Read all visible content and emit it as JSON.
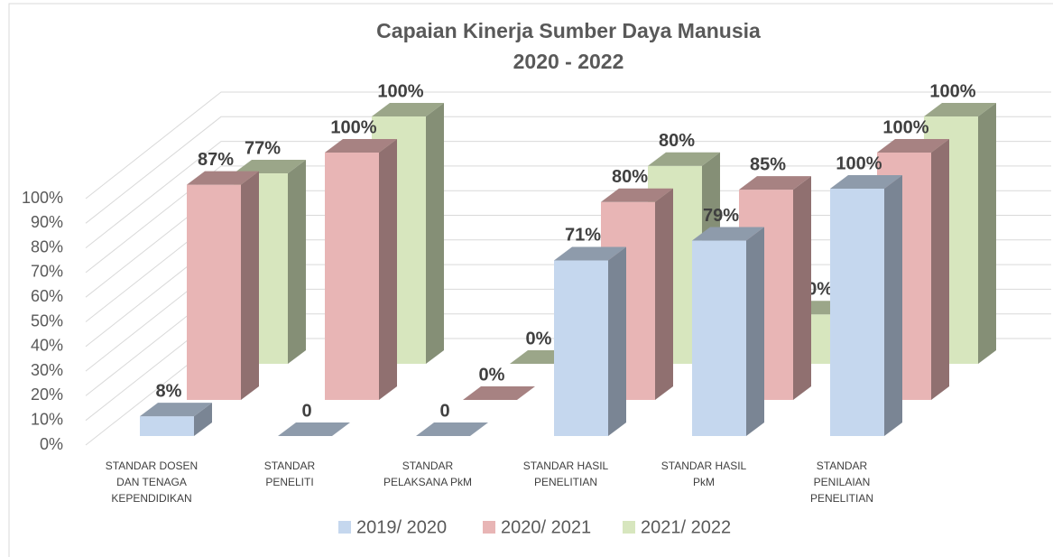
{
  "chart_data": {
    "type": "bar3d",
    "title": "Capaian Kinerja Sumber Daya Manusia",
    "subtitle": "2020 - 2022",
    "categories": [
      "STANDAR DOSEN DAN TENAGA KEPENDIDIKAN",
      "STANDAR PENELITI",
      "STANDAR PELAKSANA PkM",
      "STANDAR HASIL PENELITIAN",
      "STANDAR HASIL PkM",
      "STANDAR PENILAIAN PENELITIAN"
    ],
    "series": [
      {
        "name": "2019/ 2020",
        "color": "#c5d7ee",
        "values": [
          8,
          0,
          0,
          71,
          79,
          100
        ],
        "value_labels": [
          "8%",
          "0",
          "0",
          "71%",
          "79%",
          "100%"
        ]
      },
      {
        "name": "2020/ 2021",
        "color": "#e8b5b5",
        "values": [
          87,
          100,
          0,
          80,
          85,
          100
        ],
        "value_labels": [
          "87%",
          "100%",
          "0%",
          "80%",
          "85%",
          "100%"
        ]
      },
      {
        "name": "2021/ 2022",
        "color": "#d7e6be",
        "values": [
          77,
          100,
          0,
          80,
          20,
          100
        ],
        "value_labels": [
          "77%",
          "100%",
          "0%",
          "80%",
          "20%",
          "100%"
        ]
      }
    ],
    "ylim": [
      0,
      100
    ],
    "yticks": [
      {
        "value": 0,
        "label": "0%"
      },
      {
        "value": 10,
        "label": "10%"
      },
      {
        "value": 20,
        "label": "20%"
      },
      {
        "value": 30,
        "label": "30%"
      },
      {
        "value": 40,
        "label": "40%"
      },
      {
        "value": 50,
        "label": "50%"
      },
      {
        "value": 60,
        "label": "60%"
      },
      {
        "value": 70,
        "label": "70%"
      },
      {
        "value": 80,
        "label": "80%"
      },
      {
        "value": 90,
        "label": "90%"
      },
      {
        "value": 100,
        "label": "100%"
      }
    ],
    "grid": true,
    "legend": "bottom"
  }
}
